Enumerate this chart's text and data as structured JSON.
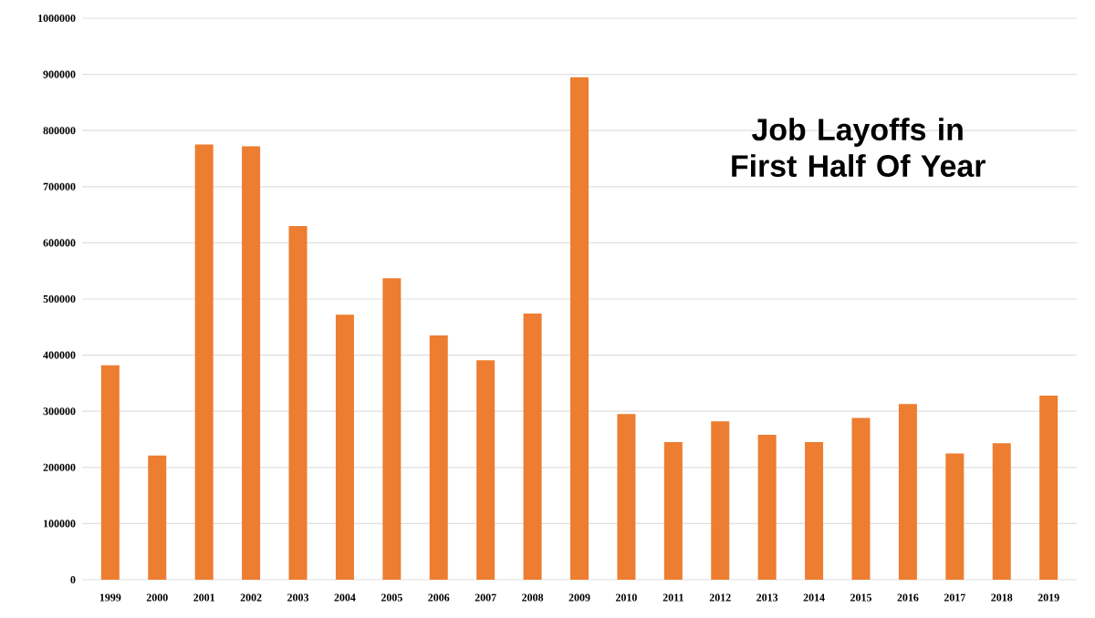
{
  "chart_data": {
    "type": "bar",
    "title": "Job Layoffs in First Half Of Year",
    "categories": [
      "1999",
      "2000",
      "2001",
      "2002",
      "2003",
      "2004",
      "2005",
      "2006",
      "2007",
      "2008",
      "2009",
      "2010",
      "2011",
      "2012",
      "2013",
      "2014",
      "2015",
      "2016",
      "2017",
      "2018",
      "2019"
    ],
    "values": [
      382000,
      221000,
      775000,
      772000,
      630000,
      472000,
      537000,
      435000,
      391000,
      474000,
      895000,
      295000,
      245000,
      282000,
      258000,
      245000,
      288000,
      313000,
      225000,
      243000,
      328000
    ],
    "color": "#ed7d31",
    "ylim": [
      0,
      1000000
    ],
    "yticks": [
      0,
      100000,
      200000,
      300000,
      400000,
      500000,
      600000,
      700000,
      800000,
      900000,
      1000000
    ],
    "grid": "y"
  }
}
